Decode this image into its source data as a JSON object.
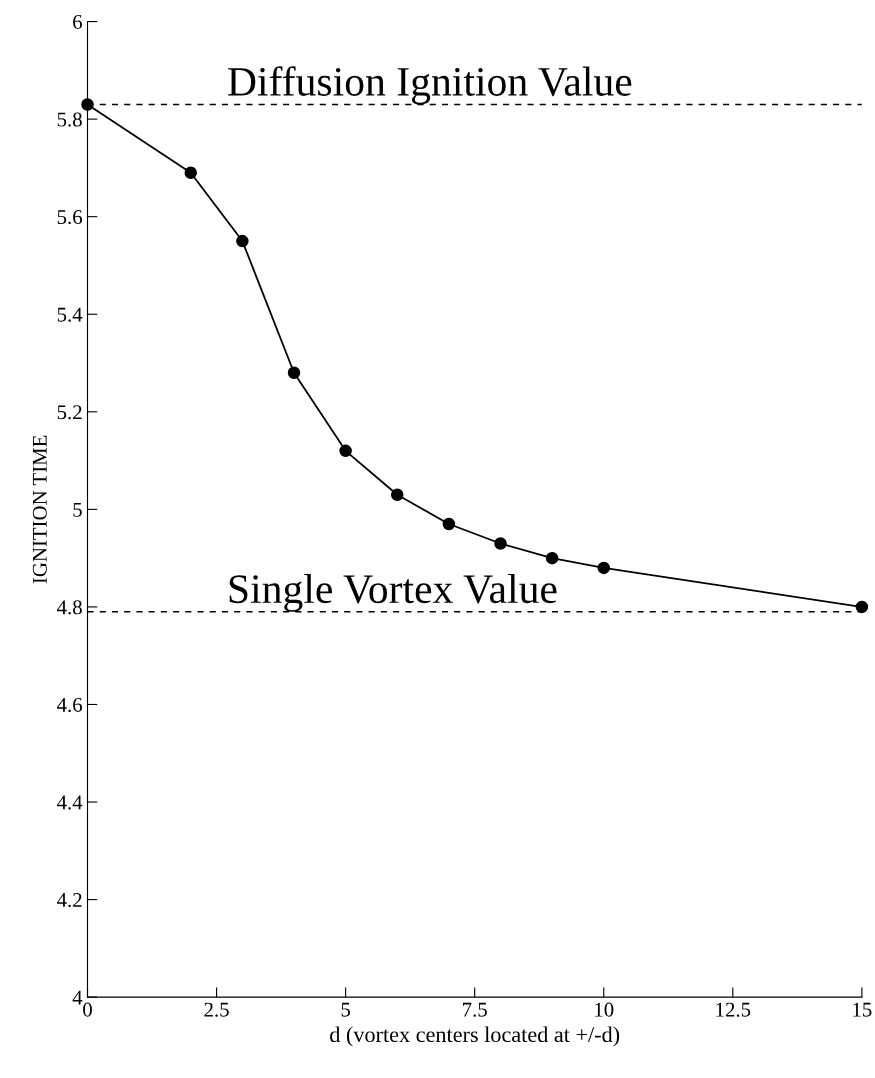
{
  "chart_data": {
    "type": "line",
    "xlabel": "d (vortex centers located at +/-d)",
    "ylabel": "IGNITION TIME",
    "x": [
      0,
      2,
      3,
      4,
      5,
      6,
      7,
      8,
      9,
      10,
      15
    ],
    "series": [
      {
        "color": "#000000",
        "values": [
          5.83,
          5.69,
          5.55,
          5.28,
          5.12,
          5.03,
          4.97,
          4.93,
          4.9,
          4.88,
          4.8
        ]
      }
    ],
    "marker": "circle",
    "line_style": "solid",
    "grid": false,
    "xlim": [
      0,
      15
    ],
    "xticks": [
      0,
      2.5,
      5,
      7.5,
      10,
      12.5,
      15
    ],
    "ylim": [
      4,
      6
    ],
    "yticks": [
      4,
      4.2,
      4.4,
      4.6,
      4.8,
      5,
      5.2,
      5.4,
      5.6,
      5.8,
      6
    ],
    "ref_lines": [
      {
        "axis": "y",
        "value": 5.83,
        "label": "Diffusion Ignition Value",
        "line_style": "dashed",
        "color": "#000000"
      },
      {
        "axis": "y",
        "value": 4.79,
        "label": "Single Vortex Value",
        "line_style": "dashed",
        "color": "#000000"
      }
    ]
  }
}
